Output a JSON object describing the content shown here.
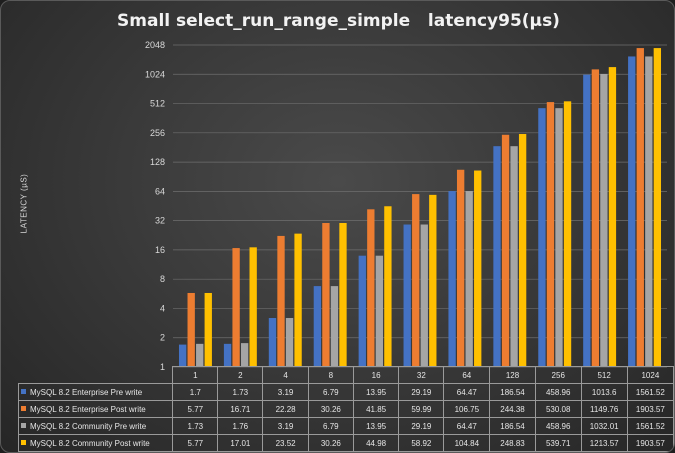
{
  "chart_data": {
    "type": "bar",
    "title": "Small select_run_range_simple   latency95(µs)",
    "ylabel": "LATENCY (µS)",
    "xlabel": "",
    "y_scale": "log2",
    "ylim": [
      1,
      2048
    ],
    "y_ticks": [
      "1",
      "2",
      "4",
      "8",
      "16",
      "32",
      "64",
      "128",
      "256",
      "512",
      "1024",
      "2048"
    ],
    "grid": true,
    "legend": "data-table",
    "categories": [
      "1",
      "2",
      "4",
      "8",
      "16",
      "32",
      "64",
      "128",
      "256",
      "512",
      "1024"
    ],
    "series": [
      {
        "name": "MySQL 8.2 Enterprise Pre write",
        "color": "#4472c4",
        "values": [
          1.7,
          1.73,
          3.19,
          6.79,
          13.95,
          29.19,
          64.47,
          186.54,
          458.96,
          1013.6,
          1561.52
        ],
        "labels": [
          "1.7",
          "1.73",
          "3.19",
          "6.79",
          "13.95",
          "29.19",
          "64.47",
          "186.54",
          "458.96",
          "1013.6",
          "1561.52"
        ]
      },
      {
        "name": "MySQL 8.2 Enterprise Post write",
        "color": "#ed7d31",
        "values": [
          5.77,
          16.71,
          22.28,
          30.26,
          41.85,
          59.99,
          106.75,
          244.38,
          530.08,
          1149.76,
          1903.57
        ],
        "labels": [
          "5.77",
          "16.71",
          "22.28",
          "30.26",
          "41.85",
          "59.99",
          "106.75",
          "244.38",
          "530.08",
          "1149.76",
          "1903.57"
        ]
      },
      {
        "name": "MySQL 8.2 Community Pre write",
        "color": "#a5a5a5",
        "values": [
          1.73,
          1.76,
          3.19,
          6.79,
          13.95,
          29.19,
          64.47,
          186.54,
          458.96,
          1032.01,
          1561.52
        ],
        "labels": [
          "1.73",
          "1.76",
          "3.19",
          "6.79",
          "13.95",
          "29.19",
          "64.47",
          "186.54",
          "458.96",
          "1032.01",
          "1561.52"
        ]
      },
      {
        "name": "MySQL 8.2 Community Post write",
        "color": "#ffc000",
        "values": [
          5.77,
          17.01,
          23.52,
          30.26,
          44.98,
          58.92,
          104.84,
          248.83,
          539.71,
          1213.57,
          1903.57
        ],
        "labels": [
          "5.77",
          "17.01",
          "23.52",
          "30.26",
          "44.98",
          "58.92",
          "104.84",
          "248.83",
          "539.71",
          "1213.57",
          "1903.57"
        ]
      }
    ]
  }
}
